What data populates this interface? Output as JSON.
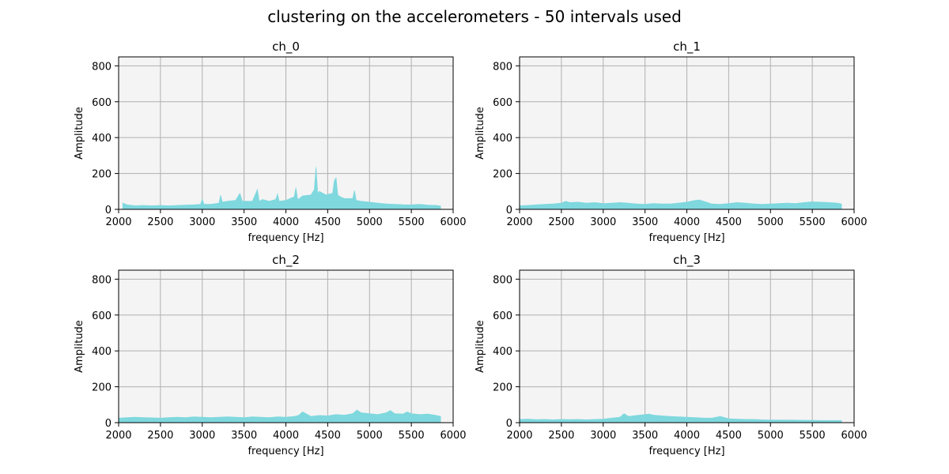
{
  "figure": {
    "title": "clustering on the accelerometers - 50 intervals used"
  },
  "chart_data": [
    {
      "type": "area",
      "title": "ch_0",
      "xlabel": "frequency [Hz]",
      "ylabel": "Amplitude",
      "xlim": [
        2000,
        6000
      ],
      "ylim": [
        0,
        850
      ],
      "xticks": [
        2000,
        2500,
        3000,
        3500,
        4000,
        4500,
        5000,
        5500,
        6000
      ],
      "yticks": [
        0,
        200,
        400,
        600,
        800
      ],
      "grid": true,
      "fill_color": "#7fd8de",
      "background_color": "#f4f4f4",
      "x": [
        2050,
        2100,
        2200,
        2300,
        2400,
        2500,
        2600,
        2700,
        2800,
        2900,
        2980,
        3000,
        3020,
        3100,
        3200,
        3220,
        3240,
        3300,
        3400,
        3450,
        3480,
        3550,
        3600,
        3660,
        3680,
        3720,
        3800,
        3880,
        3900,
        3920,
        4000,
        4100,
        4120,
        4140,
        4160,
        4200,
        4300,
        4340,
        4360,
        4380,
        4400,
        4480,
        4560,
        4580,
        4600,
        4620,
        4650,
        4700,
        4800,
        4820,
        4840,
        4900,
        5000,
        5100,
        5200,
        5300,
        5400,
        5500,
        5600,
        5700,
        5800,
        5850
      ],
      "y": [
        35,
        25,
        20,
        22,
        20,
        22,
        20,
        22,
        24,
        25,
        28,
        55,
        28,
        28,
        35,
        78,
        40,
        45,
        50,
        88,
        45,
        45,
        45,
        110,
        45,
        55,
        45,
        55,
        85,
        45,
        50,
        70,
        120,
        55,
        60,
        75,
        80,
        110,
        235,
        90,
        100,
        80,
        90,
        160,
        175,
        80,
        70,
        60,
        60,
        105,
        50,
        45,
        40,
        35,
        30,
        28,
        26,
        25,
        28,
        24,
        22,
        18
      ]
    },
    {
      "type": "area",
      "title": "ch_1",
      "xlabel": "frequency [Hz]",
      "ylabel": "Amplitude",
      "xlim": [
        2000,
        6000
      ],
      "ylim": [
        0,
        850
      ],
      "xticks": [
        2000,
        2500,
        3000,
        3500,
        4000,
        4500,
        5000,
        5500,
        6000
      ],
      "yticks": [
        0,
        200,
        400,
        600,
        800
      ],
      "grid": true,
      "fill_color": "#7fd8de",
      "background_color": "#f4f4f4",
      "x": [
        2000,
        2100,
        2200,
        2300,
        2400,
        2500,
        2550,
        2600,
        2700,
        2800,
        2900,
        3000,
        3100,
        3200,
        3300,
        3400,
        3500,
        3600,
        3700,
        3800,
        3900,
        4000,
        4100,
        4150,
        4200,
        4300,
        4400,
        4500,
        4600,
        4700,
        4800,
        4900,
        5000,
        5100,
        5200,
        5300,
        5400,
        5500,
        5600,
        5700,
        5800,
        5850
      ],
      "y": [
        20,
        22,
        25,
        28,
        30,
        35,
        45,
        38,
        40,
        35,
        38,
        32,
        35,
        38,
        35,
        30,
        28,
        32,
        30,
        30,
        35,
        40,
        50,
        52,
        45,
        30,
        28,
        32,
        38,
        35,
        30,
        28,
        30,
        32,
        35,
        32,
        38,
        42,
        40,
        38,
        35,
        30
      ]
    },
    {
      "type": "area",
      "title": "ch_2",
      "xlabel": "frequency [Hz]",
      "ylabel": "Amplitude",
      "xlim": [
        2000,
        6000
      ],
      "ylim": [
        0,
        850
      ],
      "xticks": [
        2000,
        2500,
        3000,
        3500,
        4000,
        4500,
        5000,
        5500,
        6000
      ],
      "yticks": [
        0,
        200,
        400,
        600,
        800
      ],
      "grid": true,
      "fill_color": "#7fd8de",
      "background_color": "#f4f4f4",
      "x": [
        2000,
        2100,
        2200,
        2300,
        2400,
        2500,
        2600,
        2700,
        2800,
        2900,
        3000,
        3100,
        3200,
        3300,
        3400,
        3500,
        3600,
        3700,
        3800,
        3900,
        4000,
        4100,
        4150,
        4200,
        4300,
        4400,
        4500,
        4600,
        4700,
        4800,
        4850,
        4900,
        5000,
        5100,
        5200,
        5250,
        5300,
        5400,
        5450,
        5500,
        5600,
        5700,
        5800,
        5850
      ],
      "y": [
        25,
        28,
        30,
        28,
        27,
        25,
        28,
        30,
        28,
        32,
        30,
        28,
        30,
        32,
        30,
        28,
        32,
        30,
        28,
        32,
        30,
        35,
        40,
        60,
        35,
        40,
        38,
        45,
        42,
        50,
        70,
        55,
        50,
        45,
        55,
        68,
        50,
        48,
        60,
        50,
        45,
        48,
        40,
        35
      ]
    },
    {
      "type": "area",
      "title": "ch_3",
      "xlabel": "frequency [Hz]",
      "ylabel": "Amplitude",
      "xlim": [
        2000,
        6000
      ],
      "ylim": [
        0,
        850
      ],
      "xticks": [
        2000,
        2500,
        3000,
        3500,
        4000,
        4500,
        5000,
        5500,
        6000
      ],
      "yticks": [
        0,
        200,
        400,
        600,
        800
      ],
      "grid": true,
      "fill_color": "#7fd8de",
      "background_color": "#f4f4f4",
      "x": [
        2000,
        2100,
        2200,
        2300,
        2400,
        2500,
        2600,
        2700,
        2800,
        2900,
        3000,
        3100,
        3200,
        3250,
        3300,
        3400,
        3500,
        3550,
        3600,
        3700,
        3800,
        3900,
        4000,
        4100,
        4200,
        4300,
        4400,
        4500,
        4600,
        4700,
        4800,
        4900,
        5000,
        5100,
        5200,
        5300,
        5400,
        5500,
        5600,
        5700,
        5800,
        5850
      ],
      "y": [
        18,
        20,
        17,
        18,
        16,
        18,
        17,
        18,
        16,
        18,
        20,
        25,
        30,
        50,
        35,
        40,
        45,
        48,
        42,
        38,
        35,
        32,
        30,
        28,
        26,
        25,
        35,
        22,
        20,
        18,
        18,
        16,
        15,
        15,
        14,
        14,
        13,
        13,
        12,
        12,
        12,
        12
      ]
    }
  ]
}
